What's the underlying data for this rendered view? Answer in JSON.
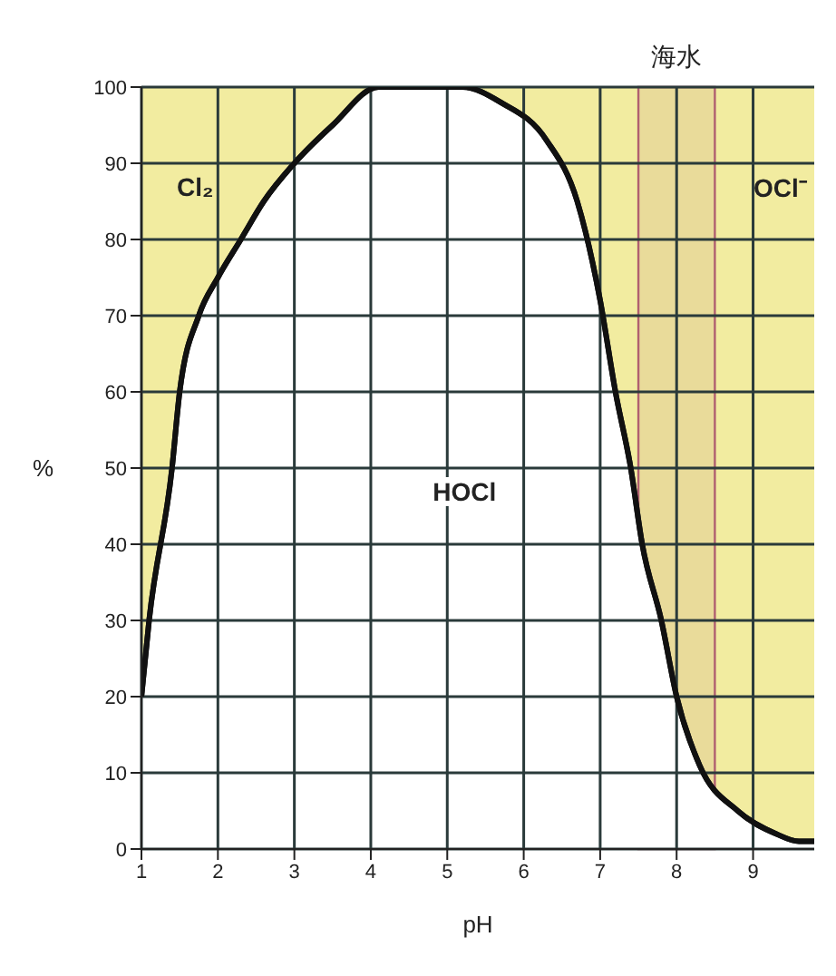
{
  "chart_data": {
    "type": "area",
    "xlabel": "pH",
    "ylabel": "%",
    "x": [
      1,
      1.1,
      1.4,
      1.5,
      1.75,
      2,
      2.3,
      2.6,
      3,
      3.5,
      4.1,
      5.2,
      5.7,
      6.3,
      6.7,
      7,
      7.2,
      7.4,
      7.55,
      7.8,
      8,
      8.3,
      8.8,
      9.3,
      9.6,
      9.8
    ],
    "series": [
      {
        "color": "#111111",
        "values": [
          20,
          30,
          50,
          60,
          70,
          75,
          80,
          85,
          90,
          95,
          100,
          100,
          98,
          93,
          85,
          72,
          60,
          50,
          40,
          30,
          20,
          11,
          5,
          2,
          1,
          1
        ]
      }
    ],
    "xlim": [
      1,
      9.8
    ],
    "xticks": [
      1,
      2,
      3,
      4,
      5,
      6,
      7,
      8,
      9
    ],
    "ylim": [
      0,
      100
    ],
    "yticks": [
      0,
      10,
      20,
      30,
      40,
      50,
      60,
      70,
      80,
      90,
      100
    ],
    "grid": true,
    "bands": [
      {
        "axis": "x",
        "from": 7.5,
        "to": 8.5,
        "label": "海水",
        "color": "#b06070"
      }
    ],
    "annotations": [
      "Cl₂",
      "HOCl",
      "OCl⁻"
    ]
  }
}
